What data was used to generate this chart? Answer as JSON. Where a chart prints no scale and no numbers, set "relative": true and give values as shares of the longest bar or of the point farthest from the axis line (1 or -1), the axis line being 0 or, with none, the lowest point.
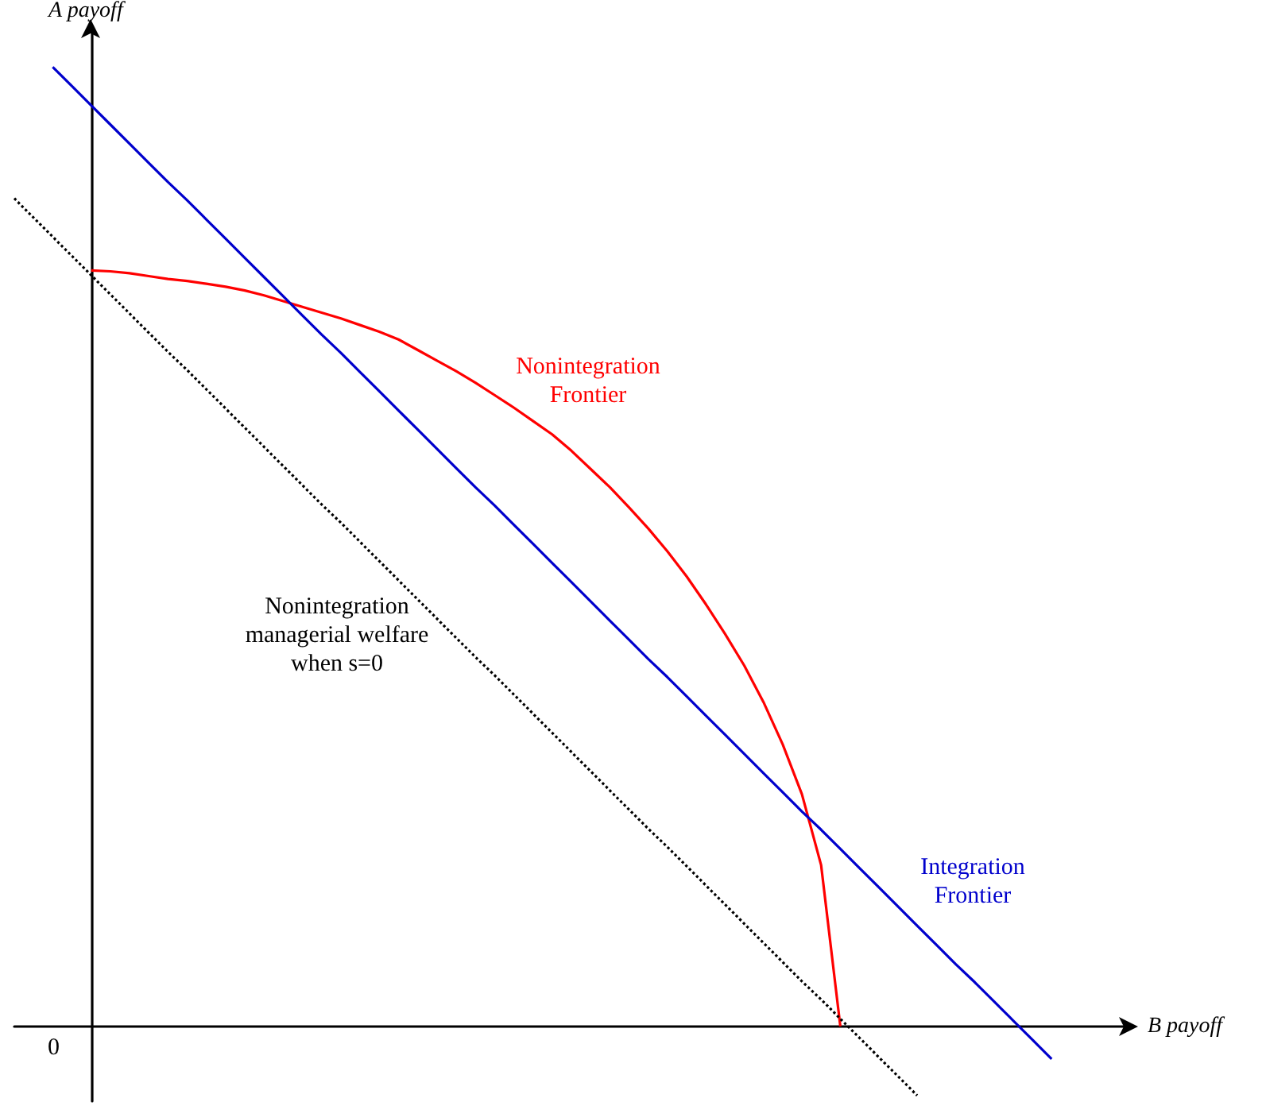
{
  "chart_data": {
    "type": "line",
    "relative": true,
    "xlabel": "B payoff",
    "ylabel": "A payoff",
    "tick_labels": false,
    "grid": false,
    "legend": false,
    "marker": "none",
    "categories": [
      null,
      null,
      null,
      null,
      null,
      null,
      null,
      null,
      null,
      null,
      null,
      null,
      null,
      null,
      null,
      null,
      null,
      null,
      null,
      null,
      null,
      null,
      null,
      null,
      null,
      null,
      null,
      null,
      null,
      null,
      null,
      null,
      null,
      null,
      null,
      null,
      null,
      null,
      null,
      null,
      null,
      null,
      null,
      null,
      null,
      null,
      null,
      null,
      null,
      null,
      null,
      null,
      null,
      null,
      null,
      null,
      null,
      null,
      null
    ],
    "series": [
      {
        "name": "Nonintegration\nFrontier",
        "color": "#ff0000",
        "line_style": "solid",
        "values": [
          null,
          null,
          null,
          null,
          0.788,
          0.787,
          0.785,
          0.782,
          0.779,
          0.777,
          0.774,
          0.771,
          0.767,
          0.762,
          0.756,
          0.75,
          0.744,
          0.738,
          0.731,
          0.724,
          0.716,
          0.705,
          0.694,
          0.683,
          0.671,
          0.658,
          0.645,
          0.631,
          0.617,
          0.6,
          0.581,
          0.562,
          0.541,
          0.519,
          0.495,
          0.469,
          0.44,
          0.409,
          0.376,
          0.338,
          0.294,
          0.242,
          0.168,
          0,
          null,
          null,
          null,
          null,
          null,
          null,
          null,
          null,
          null,
          null,
          null,
          null,
          null,
          null,
          null
        ]
      },
      {
        "name": "Integration\nFrontier",
        "color": "#0000cc",
        "line_style": "solid",
        "values": [
          null,
          null,
          1.0,
          0.98,
          0.96,
          0.94,
          0.92,
          0.9,
          0.88,
          0.861,
          0.841,
          0.821,
          0.801,
          0.781,
          0.761,
          0.741,
          0.721,
          0.702,
          0.682,
          0.662,
          0.642,
          0.622,
          0.602,
          0.582,
          0.562,
          0.543,
          0.523,
          0.503,
          0.483,
          0.463,
          0.443,
          0.423,
          0.403,
          0.383,
          0.364,
          0.344,
          0.324,
          0.304,
          0.284,
          0.264,
          0.244,
          0.224,
          0.205,
          0.185,
          0.165,
          0.145,
          0.125,
          0.105,
          0.085,
          0.065,
          0.046,
          0.026,
          0.006,
          -0.014,
          -0.034,
          null,
          null,
          null,
          null
        ]
      },
      {
        "name": "Nonintegration\nmanagerial welfare\nwhen s=0",
        "color": "#000000",
        "line_style": "dotted",
        "values": [
          0.863,
          0.843,
          0.823,
          0.803,
          0.783,
          0.763,
          0.743,
          0.723,
          0.703,
          0.684,
          0.664,
          0.644,
          0.624,
          0.604,
          0.584,
          0.564,
          0.544,
          0.525,
          0.505,
          0.485,
          0.465,
          0.445,
          0.425,
          0.405,
          0.385,
          0.366,
          0.346,
          0.326,
          0.306,
          0.286,
          0.266,
          0.246,
          0.226,
          0.206,
          0.187,
          0.167,
          0.147,
          0.127,
          0.107,
          0.087,
          0.067,
          0.047,
          0.028,
          0.008,
          -0.012,
          -0.032,
          -0.052,
          -0.072,
          null,
          null,
          null,
          null,
          null,
          null,
          null,
          null,
          null,
          null,
          null
        ]
      }
    ],
    "annotations": [
      "0"
    ]
  }
}
